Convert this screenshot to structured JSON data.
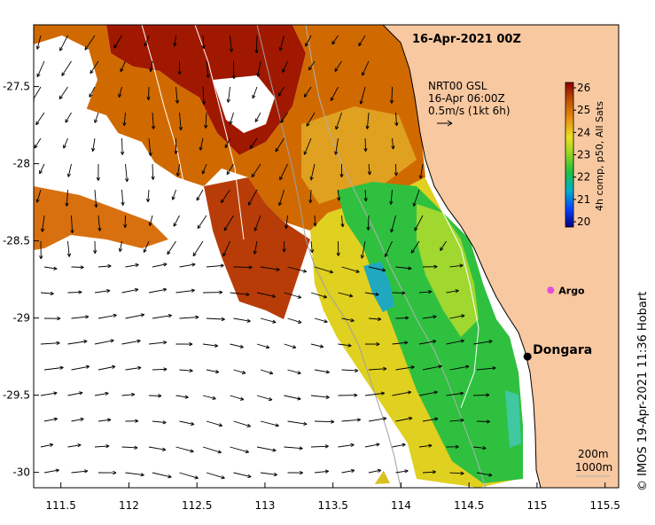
{
  "map": {
    "title": "16-Apr-2021 00Z",
    "lon_range": [
      111.3,
      115.6
    ],
    "lat_range": [
      -30.1,
      -27.1
    ],
    "x_ticks": [
      "111.5",
      "112",
      "112.5",
      "113",
      "113.5",
      "114",
      "114.5",
      "115",
      "115.5"
    ],
    "x_tick_values": [
      111.5,
      112,
      112.5,
      113,
      113.5,
      114,
      114.5,
      115,
      115.5
    ],
    "y_ticks": [
      "-27.5",
      "-28",
      "-28.5",
      "-29",
      "-29.5",
      "-30"
    ],
    "y_tick_values": [
      -27.5,
      -28,
      -28.5,
      -29,
      -29.5,
      -30
    ]
  },
  "current_legend": {
    "line1": "NRT00 GSL",
    "line2": "16-Apr 06:00Z",
    "line3": "0.5m/s (1kt 6h)"
  },
  "colorbar": {
    "title": "4h comp, p50, All Sats",
    "ticks": [
      "26",
      "25",
      "24",
      "23",
      "22",
      "21",
      "20"
    ],
    "tick_values": [
      26,
      25,
      24,
      23,
      22,
      21,
      20
    ],
    "range": [
      20,
      26
    ]
  },
  "places": {
    "dongara": {
      "label": "Dongara",
      "lon": 114.93,
      "lat": -29.25
    },
    "argo": {
      "label": "Argo",
      "lon": 115.1,
      "lat": -28.82,
      "color": "#e040e0"
    }
  },
  "depth_legend": {
    "line1": "200m",
    "line2": "1000m"
  },
  "credit": "© IMOS 19-Apr-2021 11:36 Hobart",
  "colors": {
    "land": "#f8c8a0",
    "sea_no_data": "#ffffff",
    "warm": "#a01800",
    "orange": "#d06800",
    "yellow": "#e8d820",
    "green": "#30c040",
    "cyan": "#20a8c0"
  }
}
